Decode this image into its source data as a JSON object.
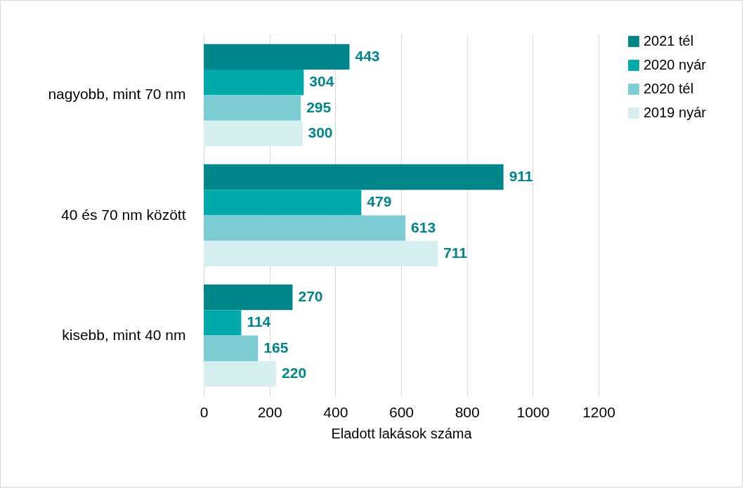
{
  "chart_data": {
    "type": "bar",
    "orientation": "horizontal",
    "xlabel": "Eladott lakások száma",
    "categories": [
      "nagyobb, mint 70 nm",
      "40 és 70 nm között",
      "kisebb, mint 40 nm"
    ],
    "series": [
      {
        "name": "2021 tél",
        "color": "#00868a",
        "values": [
          443,
          911,
          270
        ]
      },
      {
        "name": "2020 nyár",
        "color": "#00aaaa",
        "values": [
          304,
          479,
          114
        ]
      },
      {
        "name": "2020 tél",
        "color": "#7ccdd3",
        "values": [
          295,
          613,
          165
        ]
      },
      {
        "name": "2019 nyár",
        "color": "#d5eff0",
        "values": [
          300,
          711,
          220
        ]
      }
    ],
    "xlim": [
      0,
      1200
    ],
    "xticks": [
      0,
      200,
      400,
      600,
      800,
      1000,
      1200
    ],
    "grid": "x",
    "legend": "right",
    "data_labels": true
  }
}
